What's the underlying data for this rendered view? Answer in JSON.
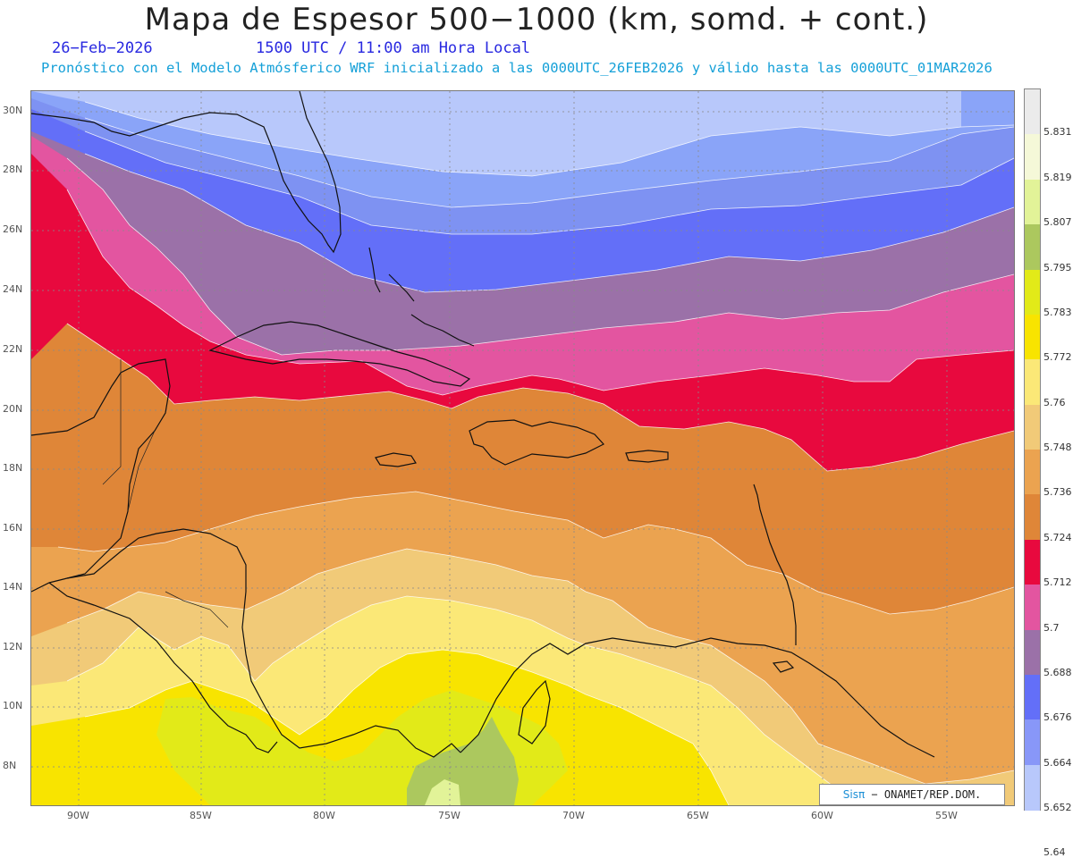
{
  "title": "Mapa de Espesor 500−1000 (km, somd. + cont.)",
  "date_label": "26−Feb−2026",
  "time_label": "1500 UTC / 11:00 am Hora Local",
  "forecast_label": "Pronóstico con el Modelo Atmósferico WRF inicializado a las 0000UTC_26FEB2026 y válido hasta las  0000UTC_01MAR2026",
  "credit": {
    "brand": "Sisπ",
    "text": "− ONAMET/REP.DOM."
  },
  "lat_labels": [
    "30N",
    "28N",
    "26N",
    "24N",
    "22N",
    "20N",
    "18N",
    "16N",
    "14N",
    "12N",
    "10N",
    "8N"
  ],
  "lon_labels": [
    "90W",
    "85W",
    "80W",
    "75W",
    "70W",
    "65W",
    "60W",
    "55W"
  ],
  "colorbar": {
    "labels": [
      "5.831",
      "5.819",
      "5.807",
      "5.795",
      "5.783",
      "5.772",
      "5.76",
      "5.748",
      "5.736",
      "5.724",
      "5.712",
      "5.7",
      "5.688",
      "5.676",
      "5.664",
      "5.652",
      "5.64"
    ],
    "colors": [
      "#ebebeb",
      "#f5f8d8",
      "#e2f398",
      "#acc85e",
      "#e2ea18",
      "#f8e400",
      "#fbe877",
      "#f1ca78",
      "#eba350",
      "#df8638",
      "#e8093e",
      "#e355a0",
      "#9b71a8",
      "#636ff8",
      "#8897f8",
      "#b8c8fb"
    ]
  },
  "map_colors": {
    "band_0": "#b8c8fb",
    "band_1": "#8aa4f8",
    "band_2": "#7e92f2",
    "band_3": "#636ff8",
    "band_4": "#9b71a8",
    "band_5": "#e355a0",
    "band_6": "#e8093e",
    "band_7": "#df8638",
    "band_8": "#eba350",
    "band_9": "#f1ca78",
    "band_10": "#fbe877",
    "band_11": "#f8e400",
    "band_12": "#e2ea18",
    "band_13": "#acc85e",
    "band_14": "#e2f398"
  }
}
